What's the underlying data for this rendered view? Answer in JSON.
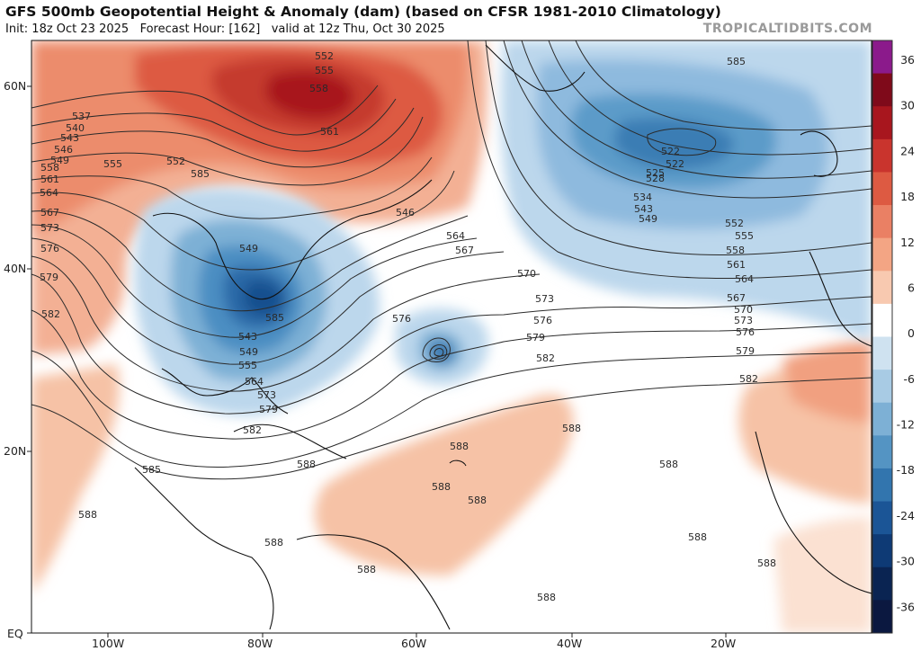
{
  "header": {
    "title": "GFS 500mb Geopotential Height & Anomaly (dam) (based on CFSR 1981-2010 Climatology)",
    "init": "Init: 18z Oct 23 2025",
    "forecast_hour": "Forecast Hour: [162]",
    "valid": "valid at 12z Thu, Oct 30 2025",
    "watermark": "TROPICALTIDBITS.COM"
  },
  "axes": {
    "lat_labels": [
      "60N",
      "40N",
      "20N",
      "EQ"
    ],
    "lon_labels": [
      "100W",
      "80W",
      "60W",
      "40W",
      "20W"
    ]
  },
  "colorbar": {
    "labels": [
      "36",
      "30",
      "24",
      "18",
      "12",
      "6",
      "0",
      "-6",
      "-12",
      "-18",
      "-24",
      "-30",
      "-36"
    ],
    "colors": [
      "#8b1a8b",
      "#7f0a1a",
      "#a8161e",
      "#c9342d",
      "#dd5a42",
      "#ea8064",
      "#f3a584",
      "#f8c9b0",
      "#ffffff",
      "#cfe2f0",
      "#a8cbe4",
      "#7db0d5",
      "#5494c3",
      "#3275ae",
      "#1b5596",
      "#0e3a75",
      "#0a2452",
      "#0b1840"
    ]
  },
  "contour_labels": [
    "552",
    "555",
    "558",
    "561",
    "537",
    "540",
    "543",
    "546",
    "549",
    "552",
    "555",
    "558",
    "561",
    "564",
    "567",
    "573",
    "576",
    "579",
    "582",
    "585",
    "549",
    "546",
    "564",
    "567",
    "570",
    "573",
    "576",
    "576",
    "579",
    "582",
    "585",
    "522",
    "522",
    "525",
    "528",
    "534",
    "543",
    "549",
    "552",
    "555",
    "558",
    "561",
    "564",
    "567",
    "570",
    "573",
    "576",
    "579",
    "582",
    "585",
    "543",
    "549",
    "555",
    "564",
    "573",
    "579",
    "582",
    "585",
    "588",
    "588",
    "588",
    "588",
    "588",
    "588",
    "588",
    "588",
    "588",
    "588",
    "588",
    "588"
  ],
  "map_features": {
    "low_centers": [
      "Mid-Atlantic coast closed low",
      "Central Atlantic cutoff low",
      "North Atlantic trough"
    ],
    "high_anomaly": "Eastern Canada ridge"
  }
}
